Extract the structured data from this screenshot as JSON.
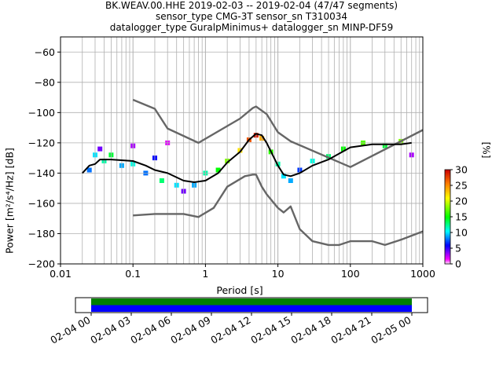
{
  "title": {
    "line1": "BK.WEAV.00.HHE   2019-02-03 -- 2019-02-04  (47/47 segments)",
    "line2": "sensor_type CMG-3T sensor_sn T310034",
    "line3": "datalogger_type GuralpMinimus+ datalogger_sn MINP-DF59"
  },
  "chart_data": [
    {
      "type": "heatmap",
      "subtype": "probabilistic power spectral density",
      "xlabel": "Period [s]",
      "ylabel": "Power [m²/s⁴/Hz] [dB]",
      "xscale": "log",
      "xlim": [
        0.01,
        1000
      ],
      "ylim": [
        -200,
        -50
      ],
      "x_ticks": [
        {
          "v": 0.01,
          "t": "0.01"
        },
        {
          "v": 0.1,
          "t": "0.1"
        },
        {
          "v": 1,
          "t": "1"
        },
        {
          "v": 10,
          "t": "10"
        },
        {
          "v": 100,
          "t": "100"
        },
        {
          "v": 1000,
          "t": "1000"
        }
      ],
      "y_ticks": [
        {
          "v": -60,
          "t": "−60"
        },
        {
          "v": -80,
          "t": "−80"
        },
        {
          "v": -100,
          "t": "−100"
        },
        {
          "v": -120,
          "t": "−120"
        },
        {
          "v": -140,
          "t": "−140"
        },
        {
          "v": -160,
          "t": "−160"
        },
        {
          "v": -180,
          "t": "−180"
        },
        {
          "v": -200,
          "t": "−200"
        }
      ],
      "grid": true,
      "colorbar": {
        "label": "[%]",
        "range": [
          0,
          30
        ],
        "ticks": [
          "0",
          "5",
          "10",
          "15",
          "20",
          "25",
          "30"
        ]
      },
      "series": [
        {
          "x": [
            0.1,
            0.2,
            0.3,
            0.8,
            3,
            4.5,
            5,
            7,
            10,
            15,
            100,
            1000
          ],
          "y": [
            -91.5,
            -97.5,
            -110.5,
            -120,
            -104,
            -97,
            -96,
            -101,
            -113,
            -119,
            -136,
            -111.5
          ]
        },
        {
          "x": [
            0.1,
            0.2,
            0.5,
            0.8,
            1.3,
            2,
            3.5,
            4.5,
            5,
            6,
            7,
            10,
            12,
            15,
            20,
            30,
            50,
            70,
            100,
            200,
            300,
            500,
            1000
          ],
          "y": [
            -168,
            -167,
            -167,
            -169,
            -163,
            -149,
            -142,
            -141,
            -141,
            -149,
            -154,
            -163,
            -166,
            -162,
            -177,
            -185,
            -187.5,
            -187.5,
            -185,
            -185,
            -187.5,
            -184,
            -178.5
          ]
        },
        {
          "x": [
            0.02,
            0.025,
            0.03,
            0.035,
            0.05,
            0.1,
            0.15,
            0.2,
            0.3,
            0.5,
            0.7,
            1,
            1.5,
            2,
            3,
            4,
            5,
            6,
            7,
            10,
            12,
            15,
            20,
            30,
            50,
            100,
            200,
            300,
            500,
            700
          ],
          "y": [
            -140,
            -135,
            -134,
            -131,
            -131,
            -132,
            -135,
            -138,
            -140,
            -145,
            -146,
            -145,
            -140,
            -133,
            -126,
            -118,
            -114,
            -115,
            -120,
            -135,
            -141,
            -142,
            -140,
            -135,
            -131,
            -123,
            -121,
            -121,
            -121,
            -120
          ]
        }
      ],
      "density_cells": [
        {
          "x": 0.025,
          "y": -138,
          "pct": 8
        },
        {
          "x": 0.03,
          "y": -128,
          "pct": 10
        },
        {
          "x": 0.035,
          "y": -124,
          "pct": 4
        },
        {
          "x": 0.04,
          "y": -132,
          "pct": 12
        },
        {
          "x": 0.05,
          "y": -128,
          "pct": 14
        },
        {
          "x": 0.07,
          "y": -135,
          "pct": 9
        },
        {
          "x": 0.1,
          "y": -122,
          "pct": 3
        },
        {
          "x": 0.1,
          "y": -134,
          "pct": 11
        },
        {
          "x": 0.15,
          "y": -140,
          "pct": 8
        },
        {
          "x": 0.2,
          "y": -130,
          "pct": 6
        },
        {
          "x": 0.25,
          "y": -145,
          "pct": 13
        },
        {
          "x": 0.3,
          "y": -120,
          "pct": 2
        },
        {
          "x": 0.4,
          "y": -148,
          "pct": 10
        },
        {
          "x": 0.5,
          "y": -152,
          "pct": 4
        },
        {
          "x": 0.7,
          "y": -148,
          "pct": 9
        },
        {
          "x": 1,
          "y": -140,
          "pct": 12
        },
        {
          "x": 1.5,
          "y": -138,
          "pct": 15
        },
        {
          "x": 2,
          "y": -132,
          "pct": 18
        },
        {
          "x": 3,
          "y": -125,
          "pct": 22
        },
        {
          "x": 4,
          "y": -118,
          "pct": 27
        },
        {
          "x": 5,
          "y": -115,
          "pct": 29
        },
        {
          "x": 6,
          "y": -117,
          "pct": 24
        },
        {
          "x": 8,
          "y": -126,
          "pct": 16
        },
        {
          "x": 10,
          "y": -134,
          "pct": 12
        },
        {
          "x": 12,
          "y": -142,
          "pct": 10
        },
        {
          "x": 15,
          "y": -145,
          "pct": 9
        },
        {
          "x": 20,
          "y": -138,
          "pct": 7
        },
        {
          "x": 30,
          "y": -132,
          "pct": 11
        },
        {
          "x": 50,
          "y": -129,
          "pct": 13
        },
        {
          "x": 80,
          "y": -124,
          "pct": 15
        },
        {
          "x": 150,
          "y": -120,
          "pct": 17
        },
        {
          "x": 300,
          "y": -122,
          "pct": 14
        },
        {
          "x": 500,
          "y": -119,
          "pct": 18
        },
        {
          "x": 700,
          "y": -128,
          "pct": 3
        }
      ]
    },
    {
      "type": "bar",
      "subtype": "data coverage timeline",
      "x_tick_labels": [
        "02-04 00",
        "02-04 03",
        "02-04 06",
        "02-04 09",
        "02-04 12",
        "02-04 15",
        "02-04 18",
        "02-04 21",
        "02-05 00"
      ],
      "bands": [
        {
          "color": "#008000"
        },
        {
          "color": "#0000ff"
        }
      ]
    }
  ],
  "colors": {
    "reference_model": "#666666",
    "mean_line": "#000000",
    "coverage_green": "#008000",
    "coverage_blue": "#0000ff"
  }
}
